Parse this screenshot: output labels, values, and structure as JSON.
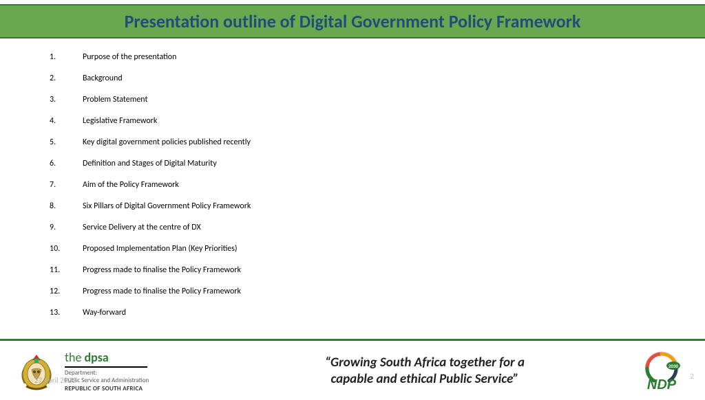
{
  "title": "Presentation outline of Digital Government Policy Framework",
  "outline": [
    "Purpose of the presentation",
    "Background",
    "Problem Statement",
    "Legislative Framework",
    "Key digital government policies published recently",
    "Definition and Stages of Digital Maturity",
    "Aim of the Policy Framework",
    "Six Pillars of Digital Government Policy Framework",
    "Service Delivery at the centre of DX",
    "Proposed Implementation Plan (Key Priorities)",
    "Progress made to finalise the Policy Framework",
    "Progress made to finalise the Policy Framework",
    "Way-forward"
  ],
  "footer": {
    "dpsa_prefix": "the ",
    "dpsa_name": "dpsa",
    "dept_line1": "Department:",
    "dept_line2": "Public Service and Administration",
    "dept_line3": "REPUBLIC OF SOUTH AFRICA",
    "motto_line1": "“Growing South Africa together for a",
    "motto_line2": "capable and ethical Public Service”",
    "ndp_text": "NDP",
    "ndp_year": "2030",
    "date": "27 April 2021",
    "page": "2"
  },
  "colors": {
    "title_bar_bg": "#6aa84f",
    "title_text": "#1f4e79",
    "divider": "#2e7d32",
    "dpsa_green": "#2e7d32"
  }
}
